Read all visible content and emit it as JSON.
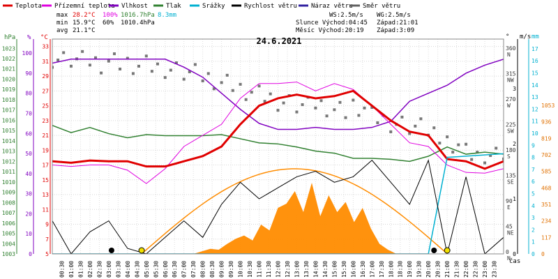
{
  "chart_data": {
    "type": "line",
    "title": "24.6.2021",
    "legend": [
      {
        "label": "Teplota",
        "color": "#e00000"
      },
      {
        "label": "Přízemní teplota",
        "color": "#e000e0"
      },
      {
        "label": "Vlhkost",
        "color": "#8000c0"
      },
      {
        "label": "Tlak",
        "color": "#308030"
      },
      {
        "label": "Srážky",
        "color": "#00b0d0"
      },
      {
        "label": "Rychlost větru",
        "color": "#000000"
      },
      {
        "label": "Náraz větru",
        "color": "#3020a0"
      },
      {
        "label": "Směr větru",
        "color": "#606060"
      }
    ],
    "stats": {
      "max_label": "max",
      "min_label": "min",
      "avg_label": "avg",
      "max_temp": "28.2°C",
      "max_hum": "100%",
      "max_press": "1016.7hPa",
      "max_rain": "8.3mm",
      "min_temp": "15.9°C",
      "min_hum": "60%",
      "min_press": "1010.4hPa",
      "avg_temp": "21.1°C"
    },
    "info": {
      "ws": "WS:2.5m/s",
      "wg": "WG:2.5m/s",
      "sunrise": "Slunce Východ:04:45",
      "sunset": "Západ:21:01",
      "moonrise": "Měsíc Východ:20:19",
      "moonset": "Západ:3:09"
    },
    "axes": {
      "hpa_label": "hPa",
      "pct_label": "%",
      "degc_label": "°C",
      "hpa_ticks": [
        1003,
        1004,
        1005,
        1006,
        1007,
        1008,
        1009,
        1010,
        1011,
        1012,
        1013,
        1014,
        1015,
        1016,
        1017,
        1018,
        1019,
        1020,
        1021,
        1022,
        1023
      ],
      "pct_ticks": [
        0,
        10,
        20,
        30,
        40,
        50,
        60,
        70,
        80,
        90,
        100
      ],
      "temp_ticks": [
        5,
        7,
        9,
        11,
        13,
        15,
        17,
        19,
        21,
        23,
        25,
        27,
        29,
        31,
        33
      ],
      "deg_label": "°",
      "ms_label": "m/s",
      "mm_label": "mm",
      "dir_ticks": [
        {
          "deg": "0",
          "dir": "N"
        },
        {
          "deg": "45",
          "dir": "NE"
        },
        {
          "deg": "90",
          "dir": "E"
        },
        {
          "deg": "135",
          "dir": "SE"
        },
        {
          "deg": "180",
          "dir": "S"
        },
        {
          "deg": "225",
          "dir": "SW"
        },
        {
          "deg": "270",
          "dir": "W"
        },
        {
          "deg": "315",
          "dir": "NW"
        },
        {
          "deg": "360",
          "dir": "N"
        }
      ],
      "ms_ticks": [
        0,
        1,
        2,
        3
      ],
      "mms_ticks": [
        0,
        1,
        2,
        3,
        4,
        5,
        6,
        7,
        8,
        9,
        10,
        11,
        12,
        13,
        14,
        15,
        16,
        17
      ],
      "radiation_ticks": [
        0,
        117,
        234,
        351,
        468,
        585,
        702,
        819,
        936,
        1053
      ],
      "time_label": "čas",
      "time_ticks": [
        "00:30",
        "01:00",
        "01:30",
        "02:00",
        "02:30",
        "03:00",
        "03:30",
        "04:00",
        "04:30",
        "05:00",
        "05:30",
        "06:00",
        "06:30",
        "07:00",
        "07:30",
        "08:00",
        "08:30",
        "09:00",
        "09:30",
        "10:00",
        "10:30",
        "11:00",
        "11:30",
        "12:00",
        "12:30",
        "13:00",
        "13:30",
        "14:00",
        "14:30",
        "15:00",
        "15:30",
        "16:00",
        "16:30",
        "17:00",
        "17:30",
        "18:00",
        "18:30",
        "19:00",
        "19:30",
        "20:00",
        "20:30",
        "21:00",
        "21:30",
        "22:00",
        "22:30",
        "23:00",
        "23:30"
      ]
    },
    "x_hours": [
      0,
      1,
      2,
      3,
      4,
      5,
      6,
      7,
      8,
      9,
      10,
      11,
      12,
      13,
      14,
      15,
      16,
      17,
      18,
      19,
      20,
      21,
      22,
      23,
      24
    ],
    "series": [
      {
        "name": "Teplota",
        "unit": "°C",
        "values": [
          17.5,
          17.3,
          17.6,
          17.5,
          17.5,
          16.8,
          16.8,
          17.5,
          18.2,
          19.5,
          22.5,
          25.0,
          26.0,
          26.5,
          26.0,
          26.3,
          27.0,
          25.0,
          23.0,
          21.5,
          21.0,
          17.8,
          17.5,
          16.5,
          17.5
        ]
      },
      {
        "name": "Přízemní teplota",
        "unit": "°C",
        "values": [
          17.0,
          16.8,
          17.0,
          17.0,
          16.3,
          14.5,
          16.5,
          19.5,
          21.0,
          22.5,
          26.0,
          28.0,
          28.0,
          28.2,
          27.0,
          28.0,
          27.2,
          25.0,
          22.5,
          20.0,
          19.5,
          17.0,
          16.0,
          15.9,
          16.5
        ]
      },
      {
        "name": "Vlhkost",
        "unit": "%",
        "values": [
          95,
          97,
          97,
          97,
          97,
          97,
          97,
          93,
          88,
          80,
          72,
          65,
          62,
          62,
          63,
          62,
          62,
          63,
          66,
          76,
          80,
          84,
          90,
          94,
          97
        ]
      },
      {
        "name": "Tlak",
        "unit": "hPa",
        "values": [
          1015.5,
          1014.8,
          1015.3,
          1014.7,
          1014.3,
          1014.6,
          1014.5,
          1014.5,
          1014.5,
          1014.6,
          1014.2,
          1013.8,
          1013.7,
          1013.4,
          1013.0,
          1012.8,
          1012.3,
          1012.3,
          1012.2,
          1012.0,
          1012.5,
          1013.4,
          1012.7,
          1012.9,
          1012.7
        ]
      },
      {
        "name": "Srážky",
        "unit": "mm",
        "values": [
          0,
          0,
          0,
          0,
          0,
          0,
          0,
          0,
          0,
          0,
          0,
          0,
          0,
          0,
          0,
          0,
          0,
          0,
          0,
          0,
          0,
          8.0,
          8.1,
          8.2,
          8.3
        ]
      },
      {
        "name": "Rychlost větru",
        "unit": "m/s",
        "values": [
          0.6,
          0.0,
          0.4,
          0.6,
          0.1,
          0.0,
          0.3,
          0.6,
          0.3,
          0.9,
          1.3,
          1.0,
          1.2,
          1.4,
          1.5,
          1.3,
          1.4,
          1.7,
          1.3,
          0.9,
          1.7,
          0.0,
          1.4,
          0.0,
          0.3
        ]
      },
      {
        "name": "Náraz větru",
        "unit": "m/s",
        "values": []
      },
      {
        "name": "Směr větru",
        "unit": "°",
        "values": [
          350,
          345,
          340,
          340,
          338,
          335,
          330,
          320,
          310,
          300,
          290,
          280,
          270,
          260,
          260,
          250,
          260,
          240,
          230,
          220,
          210,
          200,
          180,
          180,
          180
        ]
      }
    ]
  }
}
